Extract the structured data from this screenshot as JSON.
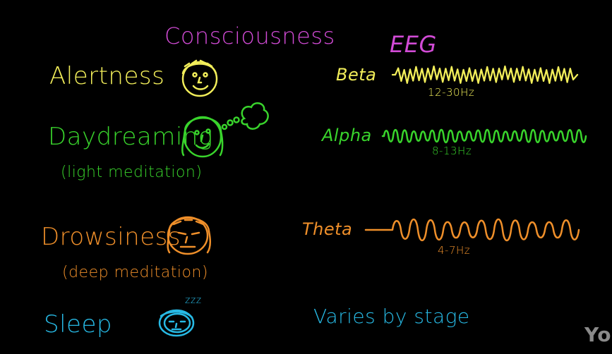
{
  "colors": {
    "background": "#000000",
    "magenta": "#d24bd6",
    "yellow": "#f2ee5a",
    "green": "#39d42c",
    "orange": "#ef8f2a",
    "cyan": "#27b9e4",
    "watermark": "#8a8a8a"
  },
  "headers": {
    "consciousness": "Consciousness",
    "eeg": "EEG"
  },
  "states": [
    {
      "label": "Alertness",
      "sublabel": "",
      "face_icon": "alert-face-icon"
    },
    {
      "label": "Daydreaming",
      "sublabel": "(light meditation)",
      "face_icon": "daydream-face-icon"
    },
    {
      "label": "Drowsiness",
      "sublabel": "(deep meditation)",
      "face_icon": "drowsy-face-icon"
    },
    {
      "label": "Sleep",
      "sublabel": "",
      "face_icon": "sleeping-face-icon"
    }
  ],
  "waves": [
    {
      "name": "Beta",
      "freq": "12-30Hz"
    },
    {
      "name": "Alpha",
      "freq": "8-13Hz"
    },
    {
      "name": "Theta",
      "freq": "4-7Hz"
    }
  ],
  "sleep_note": "Varies by stage",
  "snore": "zzz",
  "watermark": "You"
}
